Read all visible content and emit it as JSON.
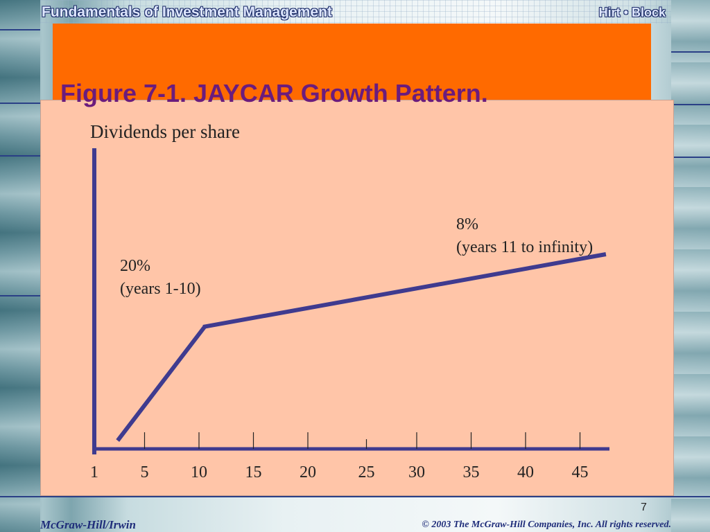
{
  "header": {
    "title": "Fundamentals of Investment Management",
    "authors": "Hirt • Block"
  },
  "slide": {
    "figure_title": "Figure 7-1.  JAYCAR Growth Pattern.",
    "page_number": "7"
  },
  "footer": {
    "publisher": "McGraw-Hill/Irwin",
    "copyright": "© 2003 The McGraw-Hill Companies, Inc. All rights reserved."
  },
  "colors": {
    "banner": "#ff6a00",
    "panel": "#ffc5a8",
    "title_text": "#6b1c7d",
    "line": "#3f3b8f"
  },
  "chart_data": {
    "type": "line",
    "title": "",
    "ylabel": "Dividends per share",
    "xlabel": "",
    "x_ticks": [
      "1",
      "5",
      "10",
      "15",
      "20",
      "25",
      "30",
      "35",
      "40",
      "45"
    ],
    "xlim": [
      0,
      48
    ],
    "series": [
      {
        "x": [
          1,
          10,
          47
        ],
        "y_relative": [
          0,
          0.61,
          1.0
        ]
      }
    ],
    "annotations": [
      {
        "id": "phase1",
        "lines": [
          "20%",
          "(years 1-10)"
        ]
      },
      {
        "id": "phase2",
        "lines": [
          "8%",
          "(years 11 to infinity)"
        ]
      }
    ],
    "grid": false,
    "legend": "none"
  }
}
